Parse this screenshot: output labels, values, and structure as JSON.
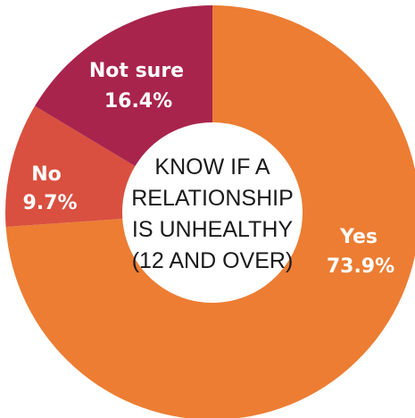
{
  "chart_data": {
    "type": "pie",
    "style": "donut",
    "center_title_lines": [
      "KNOW IF A",
      "RELATIONSHIP",
      "IS UNHEALTHY",
      "(12 AND OVER)"
    ],
    "slices": [
      {
        "label": "Yes",
        "value": 73.9,
        "value_label": "73.9%",
        "color": "#ec7d33"
      },
      {
        "label": "No",
        "value": 9.7,
        "value_label": "9.7%",
        "color": "#d95040"
      },
      {
        "label": "Not sure",
        "value": 16.4,
        "value_label": "16.4%",
        "color": "#a8244d"
      }
    ]
  }
}
